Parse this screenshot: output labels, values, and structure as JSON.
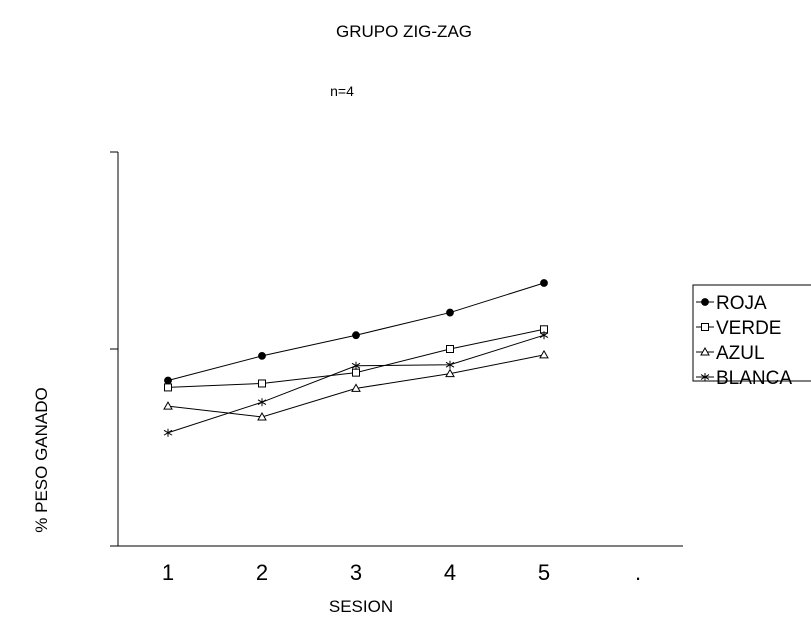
{
  "chart_data": {
    "type": "line",
    "title": "GRUPO ZIG-ZAG",
    "subtitle": "n=4",
    "xlabel": "SESION",
    "ylabel": "% PESO GANADO",
    "x_tick_labels": [
      "1",
      "2",
      "3",
      "4",
      "5",
      "."
    ],
    "x": [
      1,
      2,
      3,
      4,
      5
    ],
    "ylim": [
      0,
      4
    ],
    "grid": false,
    "legend_position": "right",
    "series": [
      {
        "name": "ROJA",
        "marker": "filled-circle",
        "values": [
          1.68,
          1.93,
          2.14,
          2.37,
          2.67
        ]
      },
      {
        "name": "VERDE",
        "marker": "open-square",
        "values": [
          1.61,
          1.65,
          1.76,
          2.0,
          2.2
        ]
      },
      {
        "name": "AZUL",
        "marker": "open-triangle",
        "values": [
          1.42,
          1.31,
          1.6,
          1.75,
          1.94
        ]
      },
      {
        "name": "BLANCA",
        "marker": "star",
        "values": [
          1.15,
          1.46,
          1.83,
          1.84,
          2.14
        ]
      }
    ]
  }
}
